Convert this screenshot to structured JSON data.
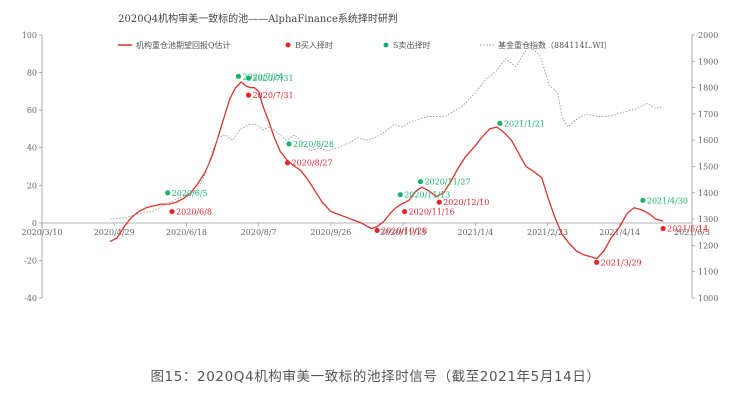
{
  "caption": "图15：2020Q4机构审美一致标的池择时信号（截至2021年5月14日）",
  "chart_data": {
    "type": "line",
    "title": "2020Q4机构审美一致标的池——AlphaFinance系统择时研判",
    "legend_placement": "top",
    "legend": [
      {
        "label": "机构重仓池期望回报Q估计",
        "kind": "line",
        "color": "#d9342b"
      },
      {
        "label": "B买入择时",
        "kind": "dot",
        "color": "#e8232a"
      },
      {
        "label": "S卖出择时",
        "kind": "dot",
        "color": "#16b36a"
      },
      {
        "label": "基金重仓指数（884114L.WI）",
        "kind": "dotted",
        "color": "#9a9a9a"
      }
    ],
    "x_ticks": [
      "2020/3/10",
      "2020/4/29",
      "2020/6/18",
      "2020/8/7",
      "2020/9/26",
      "2020/11/15",
      "2021/1/4",
      "2021/2/23",
      "2021/4/14",
      "2021/6/3"
    ],
    "xlim": [
      "2020/3/10",
      "2021/6/3"
    ],
    "y_left": {
      "min": -40,
      "max": 100,
      "ticks": [
        -40,
        -20,
        0,
        20,
        40,
        60,
        80,
        100
      ]
    },
    "y_right": {
      "min": 1000,
      "max": 2000,
      "ticks": [
        1000,
        1100,
        1200,
        1300,
        1400,
        1500,
        1600,
        1700,
        1800,
        1900,
        2000
      ]
    },
    "grid": false,
    "series": [
      {
        "name": "机构重仓池期望回报Q估计",
        "axis": "left",
        "color": "#d9342b",
        "points": [
          [
            "2020/4/26",
            -10
          ],
          [
            "2020/5/1",
            -8
          ],
          [
            "2020/5/6",
            -2
          ],
          [
            "2020/5/11",
            3
          ],
          [
            "2020/5/16",
            6
          ],
          [
            "2020/5/21",
            8
          ],
          [
            "2020/5/26",
            9
          ],
          [
            "2020/6/1",
            10
          ],
          [
            "2020/6/6",
            10
          ],
          [
            "2020/6/11",
            11
          ],
          [
            "2020/6/16",
            13
          ],
          [
            "2020/6/21",
            16
          ],
          [
            "2020/6/26",
            21
          ],
          [
            "2020/7/1",
            27
          ],
          [
            "2020/7/6",
            36
          ],
          [
            "2020/7/10",
            46
          ],
          [
            "2020/7/14",
            56
          ],
          [
            "2020/7/18",
            66
          ],
          [
            "2020/7/22",
            72
          ],
          [
            "2020/7/26",
            75
          ],
          [
            "2020/7/29",
            73
          ],
          [
            "2020/8/1",
            72
          ],
          [
            "2020/8/4",
            72
          ],
          [
            "2020/8/7",
            70
          ],
          [
            "2020/8/10",
            62
          ],
          [
            "2020/8/14",
            54
          ],
          [
            "2020/8/18",
            45
          ],
          [
            "2020/8/22",
            38
          ],
          [
            "2020/8/27",
            33
          ],
          [
            "2020/9/1",
            30
          ],
          [
            "2020/9/5",
            28
          ],
          [
            "2020/9/10",
            23
          ],
          [
            "2020/9/15",
            17
          ],
          [
            "2020/9/20",
            11
          ],
          [
            "2020/9/26",
            6
          ],
          [
            "2020/10/3",
            4
          ],
          [
            "2020/10/10",
            2
          ],
          [
            "2020/10/17",
            0
          ],
          [
            "2020/10/24",
            -3
          ],
          [
            "2020/10/28",
            -2
          ],
          [
            "2020/11/2",
            1
          ],
          [
            "2020/11/6",
            5
          ],
          [
            "2020/11/10",
            8
          ],
          [
            "2020/11/14",
            10
          ],
          [
            "2020/11/19",
            12
          ],
          [
            "2020/11/24",
            17
          ],
          [
            "2020/11/28",
            19
          ],
          [
            "2020/12/3",
            17
          ],
          [
            "2020/12/8",
            14
          ],
          [
            "2020/12/13",
            16
          ],
          [
            "2020/12/18",
            22
          ],
          [
            "2020/12/23",
            29
          ],
          [
            "2020/12/28",
            35
          ],
          [
            "2021/1/4",
            41
          ],
          [
            "2021/1/9",
            46
          ],
          [
            "2021/1/14",
            50
          ],
          [
            "2021/1/19",
            51
          ],
          [
            "2021/1/24",
            48
          ],
          [
            "2021/1/29",
            44
          ],
          [
            "2021/2/3",
            37
          ],
          [
            "2021/2/8",
            30
          ],
          [
            "2021/2/14",
            27
          ],
          [
            "2021/2/19",
            24
          ],
          [
            "2021/2/23",
            14
          ],
          [
            "2021/2/28",
            3
          ],
          [
            "2021/3/5",
            -6
          ],
          [
            "2021/3/10",
            -11
          ],
          [
            "2021/3/15",
            -15
          ],
          [
            "2021/3/20",
            -17
          ],
          [
            "2021/3/25",
            -18
          ],
          [
            "2021/3/29",
            -19
          ],
          [
            "2021/4/3",
            -15
          ],
          [
            "2021/4/8",
            -8
          ],
          [
            "2021/4/14",
            -2
          ],
          [
            "2021/4/19",
            5
          ],
          [
            "2021/4/24",
            8
          ],
          [
            "2021/4/29",
            7
          ],
          [
            "2021/5/4",
            5
          ],
          [
            "2021/5/9",
            2
          ],
          [
            "2021/5/14",
            1
          ]
        ]
      },
      {
        "name": "基金重仓指数（884114L.WI）",
        "axis": "right",
        "color": "#9a9a9a",
        "points": [
          [
            "2020/4/26",
            1300
          ],
          [
            "2020/5/6",
            1305
          ],
          [
            "2020/5/16",
            1320
          ],
          [
            "2020/5/26",
            1330
          ],
          [
            "2020/6/5",
            1360
          ],
          [
            "2020/6/15",
            1385
          ],
          [
            "2020/6/25",
            1410
          ],
          [
            "2020/7/1",
            1470
          ],
          [
            "2020/7/6",
            1560
          ],
          [
            "2020/7/10",
            1610
          ],
          [
            "2020/7/15",
            1620
          ],
          [
            "2020/7/20",
            1600
          ],
          [
            "2020/7/25",
            1640
          ],
          [
            "2020/7/31",
            1660
          ],
          [
            "2020/8/5",
            1660
          ],
          [
            "2020/8/10",
            1640
          ],
          [
            "2020/8/15",
            1650
          ],
          [
            "2020/8/20",
            1630
          ],
          [
            "2020/8/26",
            1600
          ],
          [
            "2020/9/1",
            1620
          ],
          [
            "2020/9/7",
            1590
          ],
          [
            "2020/9/12",
            1560
          ],
          [
            "2020/9/18",
            1570
          ],
          [
            "2020/9/24",
            1560
          ],
          [
            "2020/9/30",
            1570
          ],
          [
            "2020/10/9",
            1590
          ],
          [
            "2020/10/15",
            1610
          ],
          [
            "2020/10/21",
            1600
          ],
          [
            "2020/10/27",
            1610
          ],
          [
            "2020/11/2",
            1630
          ],
          [
            "2020/11/9",
            1660
          ],
          [
            "2020/11/14",
            1650
          ],
          [
            "2020/11/20",
            1670
          ],
          [
            "2020/11/26",
            1680
          ],
          [
            "2020/12/2",
            1690
          ],
          [
            "2020/12/8",
            1690
          ],
          [
            "2020/12/14",
            1690
          ],
          [
            "2020/12/20",
            1710
          ],
          [
            "2020/12/26",
            1730
          ],
          [
            "2021/1/4",
            1780
          ],
          [
            "2021/1/11",
            1830
          ],
          [
            "2021/1/18",
            1860
          ],
          [
            "2021/1/25",
            1910
          ],
          [
            "2021/2/1",
            1880
          ],
          [
            "2021/2/10",
            1960
          ],
          [
            "2021/2/18",
            1920
          ],
          [
            "2021/2/24",
            1810
          ],
          [
            "2021/3/2",
            1780
          ],
          [
            "2021/3/5",
            1690
          ],
          [
            "2021/3/9",
            1650
          ],
          [
            "2021/3/15",
            1680
          ],
          [
            "2021/3/22",
            1700
          ],
          [
            "2021/3/29",
            1690
          ],
          [
            "2021/4/5",
            1690
          ],
          [
            "2021/4/12",
            1700
          ],
          [
            "2021/4/19",
            1710
          ],
          [
            "2021/4/26",
            1720
          ],
          [
            "2021/5/3",
            1740
          ],
          [
            "2021/5/9",
            1720
          ],
          [
            "2021/5/14",
            1730
          ]
        ]
      }
    ],
    "signals": [
      {
        "type": "S",
        "label": "2020/6/5",
        "date": "2020/6/5",
        "y": 16
      },
      {
        "type": "B",
        "label": "2020/6/8",
        "date": "2020/6/8",
        "y": 6
      },
      {
        "type": "S",
        "label": "2020/7/24",
        "date": "2020/7/24",
        "y": 78
      },
      {
        "type": "S",
        "label": "2020/7/31",
        "date": "2020/7/31",
        "y": 77
      },
      {
        "type": "B",
        "label": "2020/7/31",
        "date": "2020/7/31",
        "y": 68
      },
      {
        "type": "S",
        "label": "2020/8/28",
        "date": "2020/8/28",
        "y": 42
      },
      {
        "type": "B",
        "label": "2020/8/27",
        "date": "2020/8/27",
        "y": 32
      },
      {
        "type": "B",
        "label": "2020/10/28",
        "date": "2020/10/28",
        "y": -4
      },
      {
        "type": "S",
        "label": "2020/11/13",
        "date": "2020/11/13",
        "y": 15
      },
      {
        "type": "B",
        "label": "2020/11/16",
        "date": "2020/11/16",
        "y": 6
      },
      {
        "type": "S",
        "label": "2020/11/27",
        "date": "2020/11/27",
        "y": 22
      },
      {
        "type": "B",
        "label": "2020/12/10",
        "date": "2020/12/10",
        "y": 11
      },
      {
        "type": "S",
        "label": "2021/1/21",
        "date": "2021/1/21",
        "y": 53
      },
      {
        "type": "B",
        "label": "2021/3/29",
        "date": "2021/3/29",
        "y": -21
      },
      {
        "type": "S",
        "label": "2021/4/30",
        "date": "2021/4/30",
        "y": 12
      },
      {
        "type": "B",
        "label": "2021/5/14",
        "date": "2021/5/14",
        "y": -3
      }
    ]
  }
}
